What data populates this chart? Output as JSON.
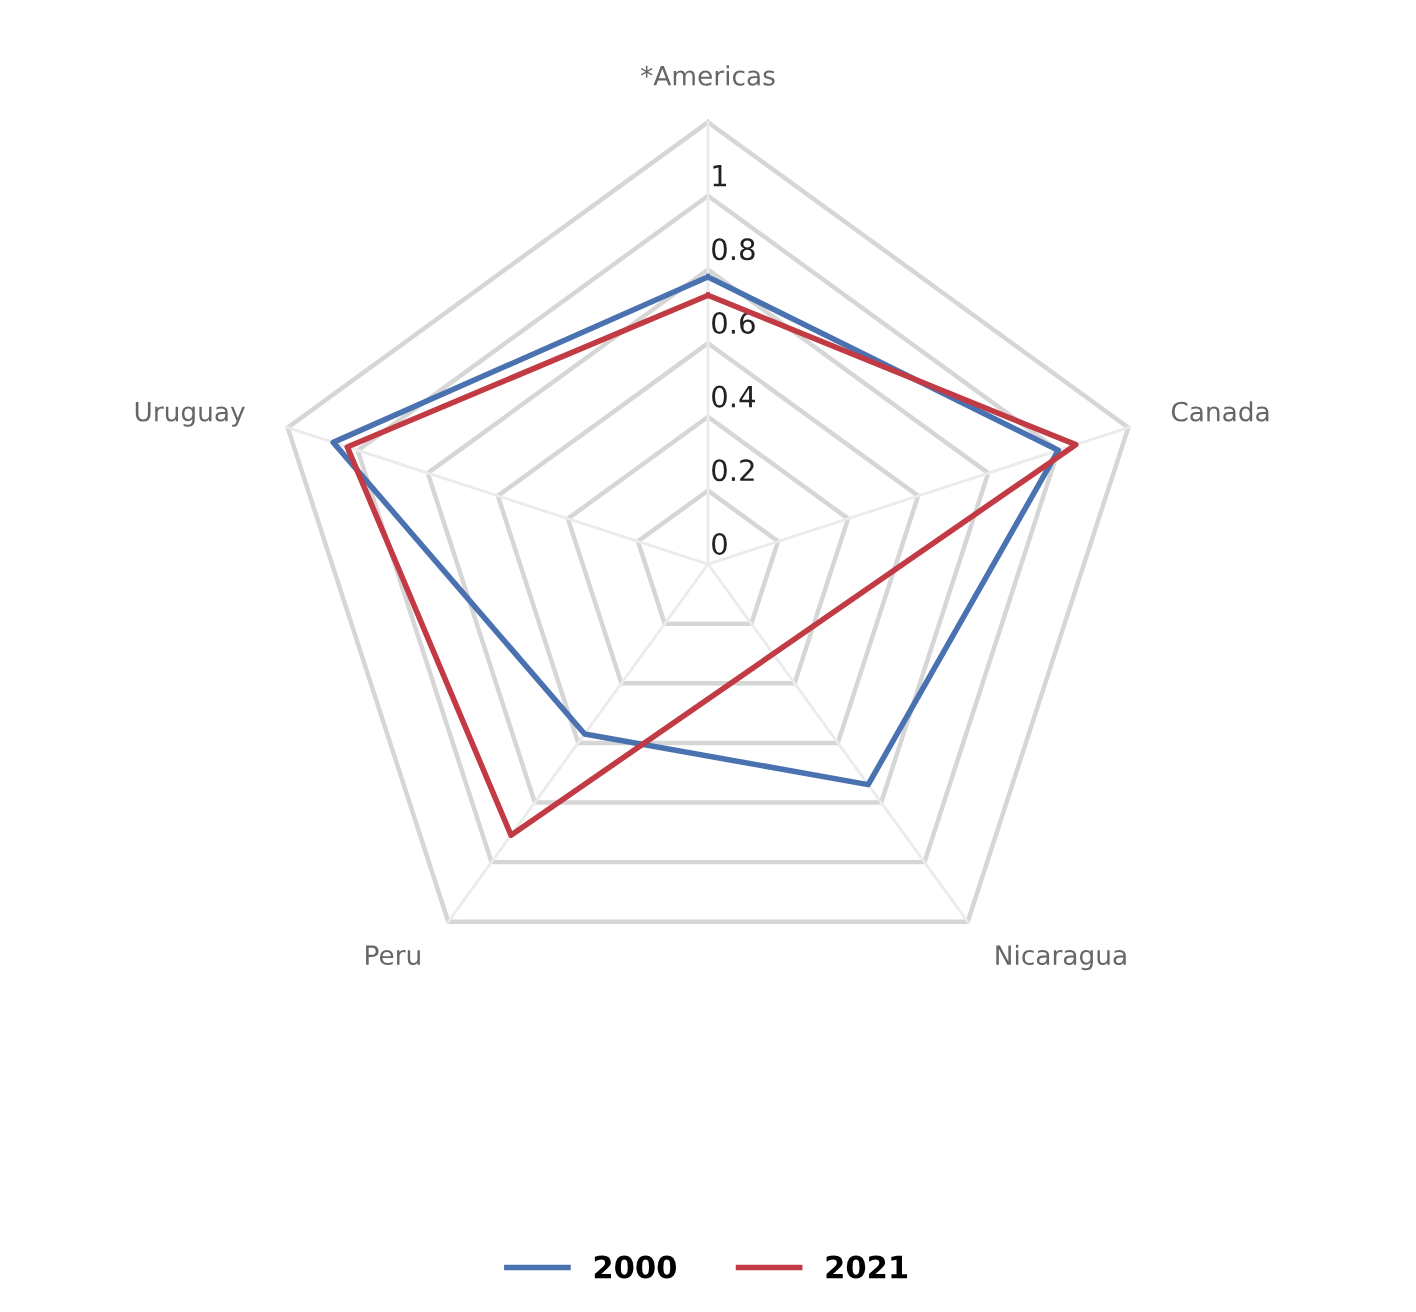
{
  "chart_data": {
    "type": "radar",
    "categories": [
      "*Americas",
      "Canada",
      "Nicaragua",
      "Peru",
      "Uruguay"
    ],
    "series": [
      {
        "name": "2000",
        "color": "#4a72b0",
        "values": [
          0.78,
          1.0,
          0.74,
          0.57,
          1.07
        ]
      },
      {
        "name": "2021",
        "color": "#c23a44",
        "values": [
          0.73,
          1.05,
          null,
          0.91,
          1.03
        ]
      }
    ],
    "ylim": [
      0,
      1.2
    ],
    "yticks": [
      0,
      0.2,
      0.4,
      0.6,
      0.8,
      1
    ],
    "grid": true,
    "legend": "bottom",
    "marker": "none",
    "line_style": "solid"
  }
}
